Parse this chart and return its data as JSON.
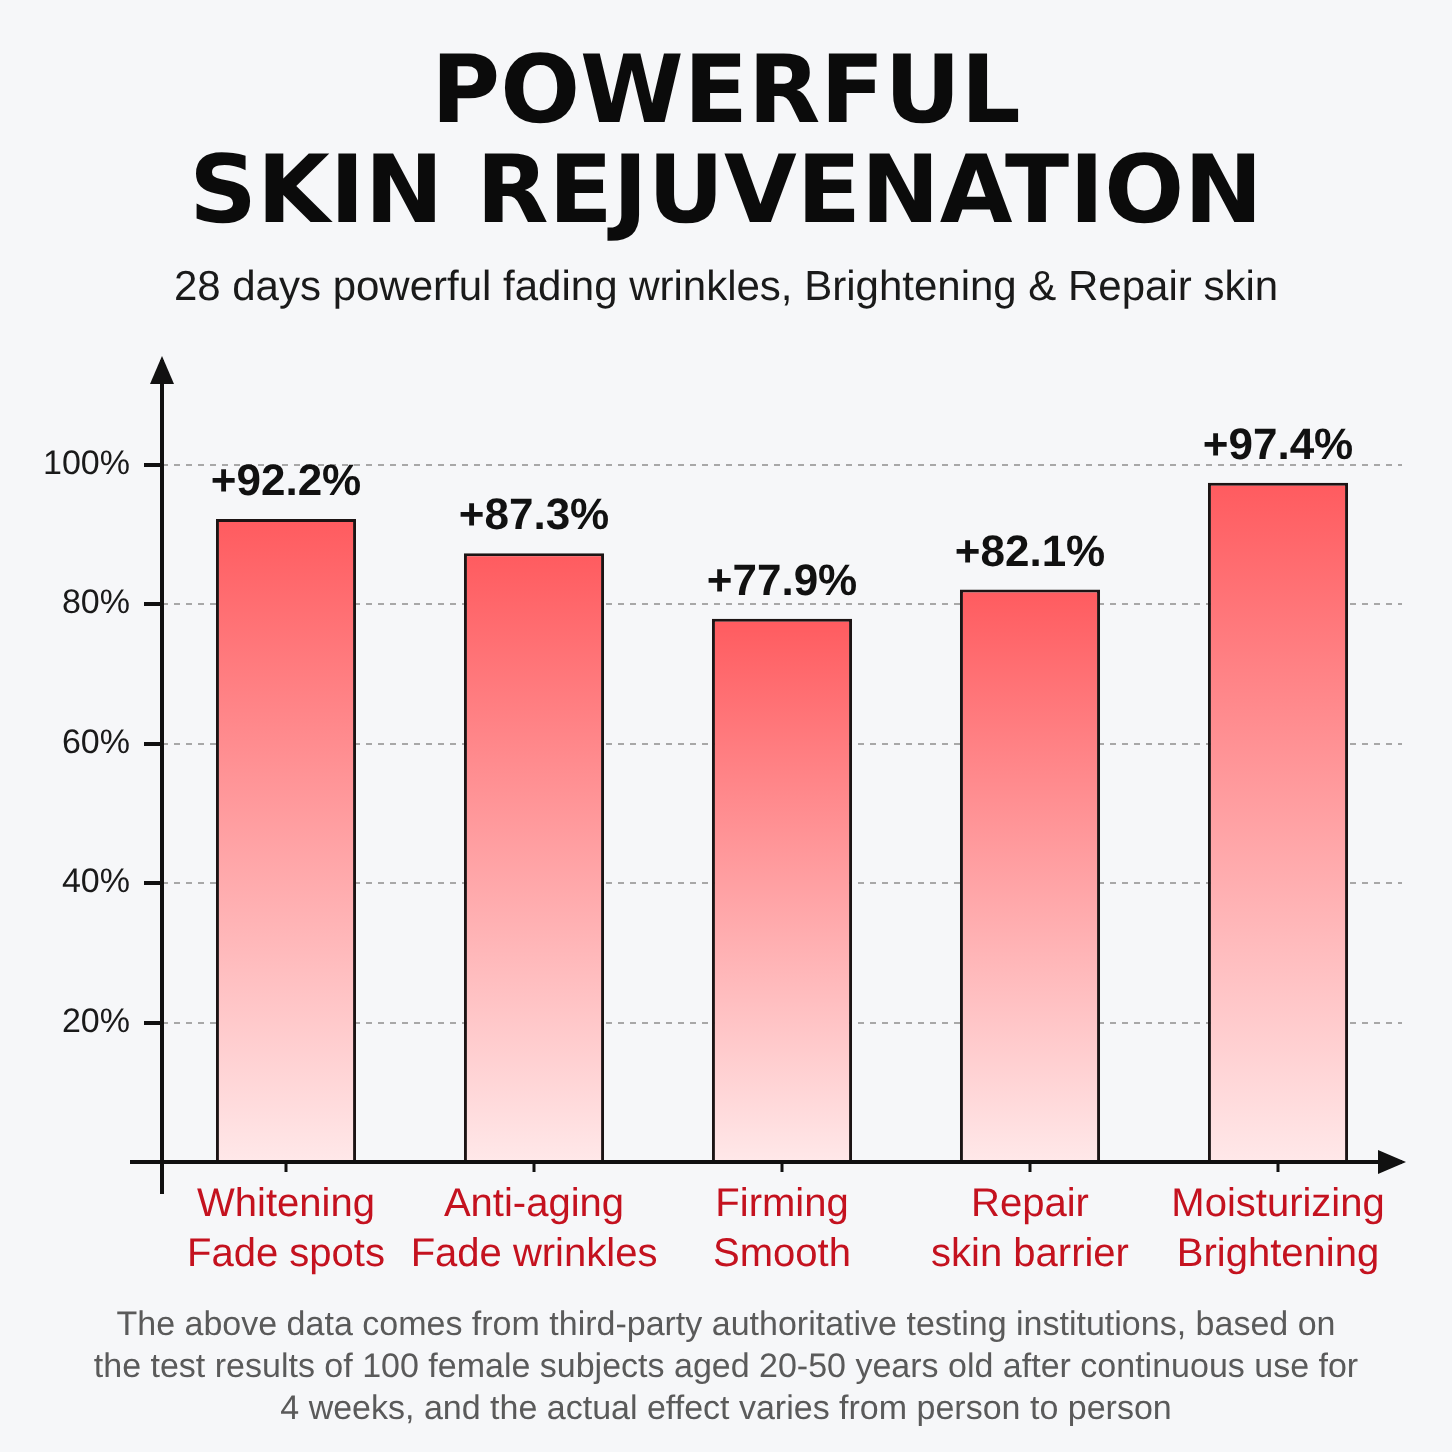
{
  "chart_data": {
    "type": "bar",
    "title": "POWERFUL\nSKIN REJUVENATION",
    "subtitle": "28 days powerful fading wrinkles, Brightening & Repair skin",
    "categories": [
      "Whitening\nFade spots",
      "Anti-aging\nFade wrinkles",
      "Firming\nSmooth",
      "Repair\nskin barrier",
      "Moisturizing\nBrightening"
    ],
    "values": [
      92.2,
      87.3,
      77.9,
      82.1,
      97.4
    ],
    "value_labels": [
      "+92.2%",
      "+87.3%",
      "+77.9%",
      "+82.1%",
      "+97.4%"
    ],
    "color": "#ff5b5f",
    "ylim": [
      0,
      115
    ],
    "yticks": [
      {
        "value": 20,
        "label": "20%"
      },
      {
        "value": 40,
        "label": "40%"
      },
      {
        "value": 60,
        "label": "60%"
      },
      {
        "value": 80,
        "label": "80%"
      },
      {
        "value": 100,
        "label": "100%"
      }
    ],
    "grid": "y",
    "annotations": [
      "The above data comes from third-party authoritative testing institutions, based on\nthe test results of 100 female subjects aged 20-50 years old after continuous use for\n4 weeks, and the actual effect varies from person to person"
    ]
  }
}
